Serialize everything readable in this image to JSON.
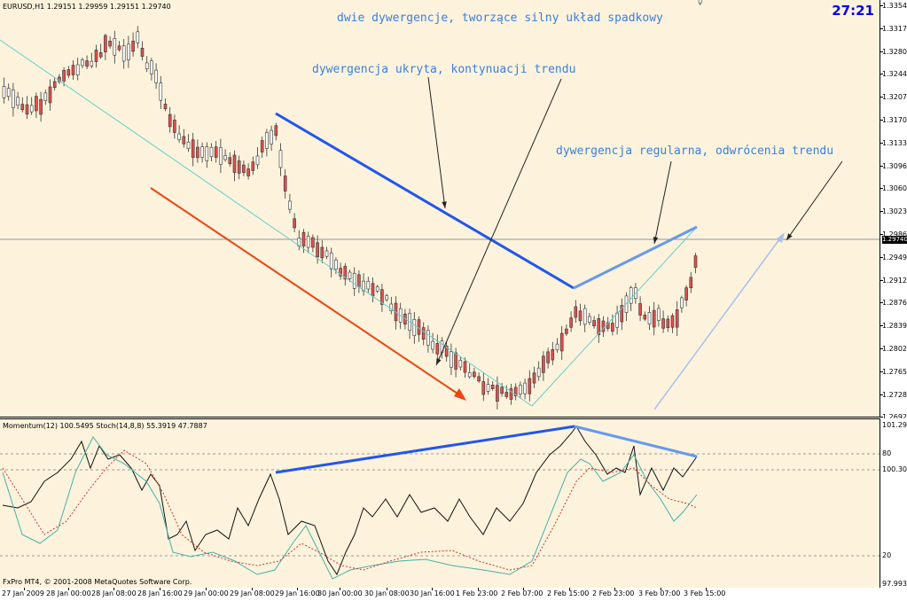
{
  "chart": {
    "symbol_info": "EURUSD,H1  1.29151 1.29959 1.29151 1.29740",
    "timer": "27:21",
    "current_price": "1.29740",
    "price_ticks": [
      "1.33540",
      "1.33170",
      "1.32800",
      "1.32440",
      "1.32070",
      "1.31700",
      "1.31330",
      "1.30960",
      "1.30600",
      "1.30230",
      "1.29860",
      "1.29490",
      "1.29120",
      "1.28760",
      "1.28390",
      "1.28020",
      "1.27650",
      "1.27280",
      "1.26920"
    ],
    "colors": {
      "background": "#fdf3dc",
      "bull_candle": "#ffffff",
      "bear_candle": "#e05050",
      "trend_line": "#66cccc",
      "divergence_blue": "#2255ee",
      "divergence_light": "#6699ee",
      "downtrend_arrow": "#ee4411",
      "annotation_text": "#3a7fdc"
    }
  },
  "annotations": {
    "title": "dwie dywergencje, tworzące silny układ spadkowy",
    "hidden": "dywergencja ukryta, kontynuacji trendu",
    "regular": "dywergencja regularna, odwrócenia trendu"
  },
  "indicator": {
    "info": "Momentum(12) 100.5495  Stoch(14,8,8) 55.3919 47.7887",
    "ticks": [
      "101.2913",
      "80",
      "100.3048",
      "20",
      "97.9936"
    ],
    "copyright": "FxPro MT4, © 2001-2008 MetaQuotes Software Corp."
  },
  "time_axis": [
    "27 Jan 2009",
    "28 Jan 00:00",
    "28 Jan 08:00",
    "28 Jan 16:00",
    "29 Jan 00:00",
    "29 Jan 08:00",
    "29 Jan 16:00",
    "30 Jan 00:00",
    "30 Jan 08:00",
    "30 Jan 16:00",
    "1 Feb 23:00",
    "2 Feb 07:00",
    "2 Feb 15:00",
    "2 Feb 23:00",
    "3 Feb 07:00",
    "3 Feb 15:00"
  ]
}
